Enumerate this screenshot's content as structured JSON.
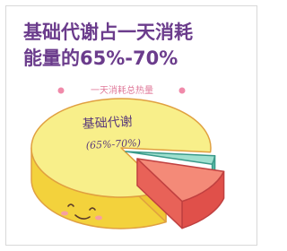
{
  "title": {
    "line1": "基础代谢占一天消耗",
    "line2": "能量的65%-70%"
  },
  "subtitle": "一天消耗总热量",
  "pie_label": {
    "line1": "基础代谢",
    "line2": "(65%-70%)"
  }
}
